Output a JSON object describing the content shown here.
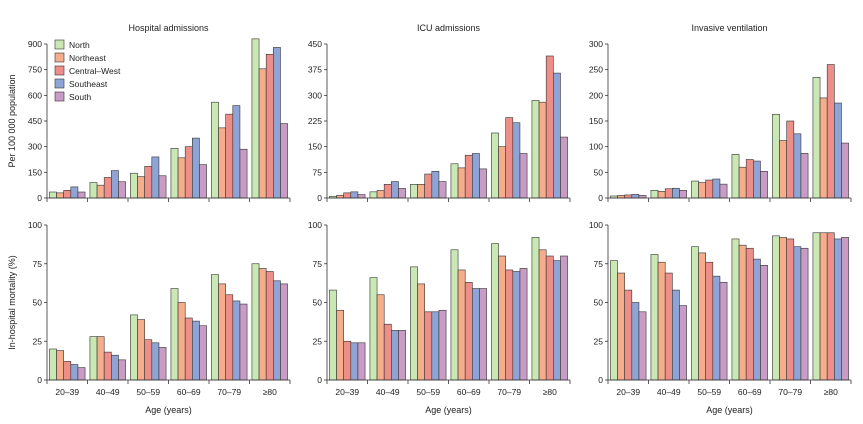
{
  "colors": {
    "North": "#c9e8b4",
    "Northeast": "#f5ad8c",
    "Central-West": "#ee8e88",
    "Southeast": "#8fa4d6",
    "South": "#c99cc6"
  },
  "legend": [
    "North",
    "Northeast",
    "Central–West",
    "Southeast",
    "South"
  ],
  "x_label": "Age (years)",
  "row_ylabels": [
    "Per 100 000 population",
    "In-hospital mortality (%)"
  ],
  "chart_data": [
    {
      "type": "bar",
      "title": "Hospital admissions",
      "ylabel": "Per 100 000 population",
      "xlabel": "",
      "ylim": [
        0,
        900
      ],
      "yticks": [
        0,
        150,
        300,
        450,
        600,
        750,
        900
      ],
      "categories": [
        "20–39",
        "40–49",
        "50–59",
        "60–69",
        "70–79",
        "≥80"
      ],
      "series": [
        {
          "name": "North",
          "values": [
            35,
            90,
            145,
            290,
            560,
            930
          ]
        },
        {
          "name": "Northeast",
          "values": [
            30,
            75,
            125,
            235,
            410,
            755
          ]
        },
        {
          "name": "Central–West",
          "values": [
            45,
            120,
            185,
            300,
            490,
            840
          ]
        },
        {
          "name": "Southeast",
          "values": [
            65,
            160,
            240,
            350,
            540,
            880
          ]
        },
        {
          "name": "South",
          "values": [
            35,
            95,
            130,
            195,
            285,
            435
          ]
        }
      ]
    },
    {
      "type": "bar",
      "title": "ICU admissions",
      "ylabel": "",
      "xlabel": "",
      "ylim": [
        0,
        450
      ],
      "yticks": [
        0,
        75,
        150,
        225,
        300,
        375,
        450
      ],
      "categories": [
        "20–39",
        "40–49",
        "50–59",
        "60–69",
        "70–79",
        "≥80"
      ],
      "series": [
        {
          "name": "North",
          "values": [
            5,
            18,
            40,
            100,
            190,
            285
          ]
        },
        {
          "name": "Northeast",
          "values": [
            8,
            22,
            40,
            88,
            150,
            280
          ]
        },
        {
          "name": "Central–West",
          "values": [
            15,
            40,
            70,
            125,
            235,
            415
          ]
        },
        {
          "name": "Southeast",
          "values": [
            18,
            48,
            78,
            130,
            220,
            365
          ]
        },
        {
          "name": "South",
          "values": [
            10,
            28,
            48,
            85,
            130,
            178
          ]
        }
      ]
    },
    {
      "type": "bar",
      "title": "Invasive ventilation",
      "ylabel": "",
      "xlabel": "",
      "ylim": [
        0,
        300
      ],
      "yticks": [
        0,
        50,
        100,
        150,
        200,
        250,
        300
      ],
      "categories": [
        "20–39",
        "40–49",
        "50–59",
        "60–69",
        "70–79",
        "≥80"
      ],
      "series": [
        {
          "name": "North",
          "values": [
            4,
            15,
            33,
            85,
            163,
            235
          ]
        },
        {
          "name": "Northeast",
          "values": [
            5,
            13,
            30,
            60,
            112,
            195
          ]
        },
        {
          "name": "Central–West",
          "values": [
            6,
            18,
            35,
            75,
            150,
            260
          ]
        },
        {
          "name": "Southeast",
          "values": [
            7,
            19,
            37,
            72,
            125,
            185
          ]
        },
        {
          "name": "South",
          "values": [
            5,
            15,
            27,
            52,
            87,
            107
          ]
        }
      ]
    },
    {
      "type": "bar",
      "title": "",
      "ylabel": "In-hospital mortality (%)",
      "xlabel": "Age (years)",
      "ylim": [
        0,
        100
      ],
      "yticks": [
        0,
        25,
        50,
        75,
        100
      ],
      "categories": [
        "20–39",
        "40–49",
        "50–59",
        "60–69",
        "70–79",
        "≥80"
      ],
      "series": [
        {
          "name": "North",
          "values": [
            20,
            28,
            42,
            59,
            68,
            75
          ]
        },
        {
          "name": "Northeast",
          "values": [
            19,
            28,
            39,
            50,
            62,
            72
          ]
        },
        {
          "name": "Central–West",
          "values": [
            12,
            18,
            26,
            40,
            55,
            70
          ]
        },
        {
          "name": "Southeast",
          "values": [
            10,
            16,
            24,
            38,
            51,
            64
          ]
        },
        {
          "name": "South",
          "values": [
            8,
            13,
            21,
            35,
            49,
            62
          ]
        }
      ]
    },
    {
      "type": "bar",
      "title": "",
      "ylabel": "",
      "xlabel": "Age (years)",
      "ylim": [
        0,
        100
      ],
      "yticks": [
        0,
        25,
        50,
        75,
        100
      ],
      "categories": [
        "20–39",
        "40–49",
        "50–59",
        "60–69",
        "70–79",
        "≥80"
      ],
      "series": [
        {
          "name": "North",
          "values": [
            58,
            66,
            73,
            84,
            88,
            92
          ]
        },
        {
          "name": "Northeast",
          "values": [
            45,
            55,
            62,
            71,
            80,
            84
          ]
        },
        {
          "name": "Central–West",
          "values": [
            25,
            36,
            44,
            63,
            71,
            80
          ]
        },
        {
          "name": "Southeast",
          "values": [
            24,
            32,
            44,
            59,
            70,
            77
          ]
        },
        {
          "name": "South",
          "values": [
            24,
            32,
            45,
            59,
            72,
            80
          ]
        }
      ]
    },
    {
      "type": "bar",
      "title": "",
      "ylabel": "",
      "xlabel": "Age (years)",
      "ylim": [
        0,
        100
      ],
      "yticks": [
        0,
        25,
        50,
        75,
        100
      ],
      "categories": [
        "20–39",
        "40–49",
        "50–59",
        "60–69",
        "70–79",
        "≥80"
      ],
      "series": [
        {
          "name": "North",
          "values": [
            77,
            81,
            86,
            91,
            93,
            95
          ]
        },
        {
          "name": "Northeast",
          "values": [
            69,
            76,
            82,
            87,
            92,
            95
          ]
        },
        {
          "name": "Central–West",
          "values": [
            58,
            69,
            76,
            85,
            91,
            95
          ]
        },
        {
          "name": "Southeast",
          "values": [
            50,
            58,
            67,
            78,
            86,
            91
          ]
        },
        {
          "name": "South",
          "values": [
            44,
            48,
            63,
            74,
            85,
            92
          ]
        }
      ]
    }
  ]
}
